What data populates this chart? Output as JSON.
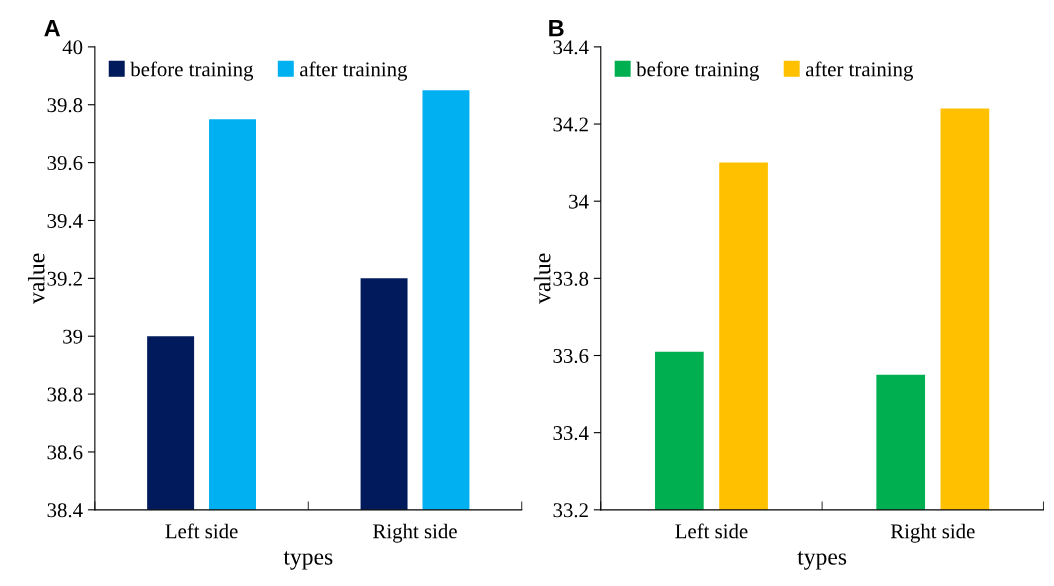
{
  "chart_data": [
    {
      "type": "bar",
      "annotations": [
        "A"
      ],
      "xlabel": "types",
      "ylabel": "value",
      "categories": [
        "Left side",
        "Right side"
      ],
      "series": [
        {
          "name": "before training",
          "color": "#001a5c",
          "values": [
            39.0,
            39.2
          ]
        },
        {
          "name": "after training",
          "color": "#00b0f0",
          "values": [
            39.75,
            39.85
          ]
        }
      ],
      "ylim": [
        38.4,
        40
      ],
      "yticks": [
        38.4,
        38.6,
        38.8,
        39,
        39.2,
        39.4,
        39.6,
        39.8,
        40
      ],
      "grid": false,
      "legend": "top left"
    },
    {
      "type": "bar",
      "annotations": [
        "B"
      ],
      "xlabel": "types",
      "ylabel": "value",
      "categories": [
        "Left side",
        "Right side"
      ],
      "series": [
        {
          "name": "before training",
          "color": "#00b050",
          "values": [
            33.61,
            33.55
          ]
        },
        {
          "name": "after training",
          "color": "#ffc000",
          "values": [
            34.1,
            34.24
          ]
        }
      ],
      "ylim": [
        33.2,
        34.4
      ],
      "yticks": [
        33.2,
        33.4,
        33.6,
        33.8,
        34,
        34.2,
        34.4
      ],
      "grid": false,
      "legend": "top left"
    }
  ]
}
